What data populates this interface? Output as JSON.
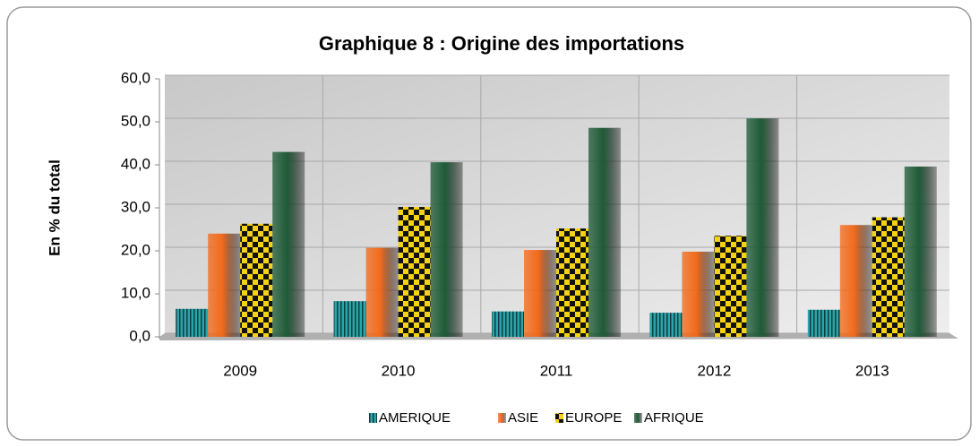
{
  "chart_data": {
    "type": "bar",
    "title": "Graphique 8 : Origine des importations",
    "ylabel": "En % du total",
    "categories": [
      "2009",
      "2010",
      "2011",
      "2012",
      "2013"
    ],
    "series": [
      {
        "name": "AMERIQUE",
        "color": "#2aa5aa",
        "values": [
          6.5,
          8.3,
          5.9,
          5.6,
          6.3
        ]
      },
      {
        "name": "ASIE",
        "color": "#f26a1b",
        "values": [
          24.0,
          20.7,
          20.2,
          19.8,
          26.0
        ]
      },
      {
        "name": "EUROPE",
        "color": "#f5d312",
        "values": [
          26.3,
          30.2,
          25.2,
          23.5,
          27.8
        ]
      },
      {
        "name": "AFRIQUE",
        "color": "#1f5b37",
        "values": [
          43.0,
          40.6,
          48.6,
          50.8,
          39.6
        ]
      }
    ],
    "ylim": [
      0,
      60
    ],
    "yticks": [
      {
        "value": 0,
        "label": "0,0"
      },
      {
        "value": 10,
        "label": "10,0"
      },
      {
        "value": 20,
        "label": "20,0"
      },
      {
        "value": 30,
        "label": "30,0"
      },
      {
        "value": 40,
        "label": "40,0"
      },
      {
        "value": 50,
        "label": "50,0"
      },
      {
        "value": 60,
        "label": "60,0"
      }
    ],
    "grid": true,
    "legend": "bottom"
  }
}
